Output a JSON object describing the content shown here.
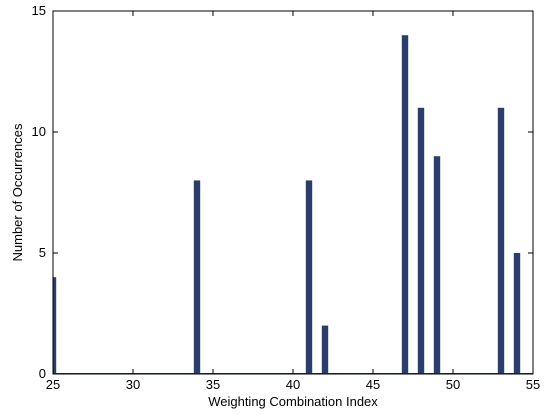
{
  "chart_data": {
    "type": "bar",
    "title": "",
    "xlabel": "Weighting Combination Index",
    "ylabel": "Number of Occurrences",
    "xlim": [
      25,
      55
    ],
    "ylim": [
      0,
      15
    ],
    "xticks": [
      25,
      30,
      35,
      40,
      45,
      50,
      55
    ],
    "yticks": [
      0,
      5,
      10,
      15
    ],
    "grid": false,
    "bar_color": "#2b3e6b",
    "x": [
      25,
      34,
      41,
      42,
      47,
      48,
      49,
      53,
      54
    ],
    "values": [
      4,
      8,
      8,
      2,
      14,
      11,
      9,
      11,
      5
    ]
  }
}
